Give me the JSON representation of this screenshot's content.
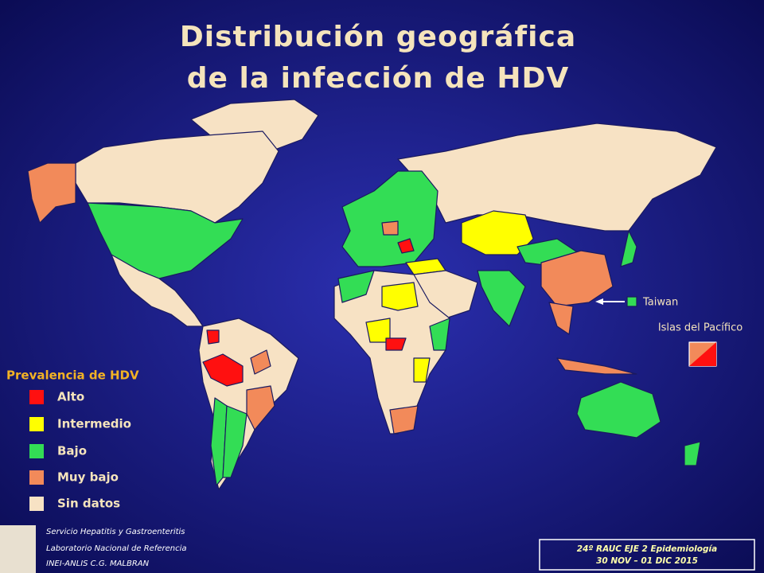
{
  "title": [
    "Distribución geográfica",
    "de la infección de HDV"
  ],
  "legend": {
    "title": "Prevalencia de HDV",
    "items": [
      {
        "label": "Alto",
        "color": "#ff1010"
      },
      {
        "label": "Intermedio",
        "color": "#ffff00"
      },
      {
        "label": "Bajo",
        "color": "#33dd55"
      },
      {
        "label": "Muy bajo",
        "color": "#f28a5a"
      },
      {
        "label": "Sin datos",
        "color": "#f7e2c4"
      }
    ]
  },
  "map_labels": {
    "taiwan": "Taiwan",
    "pacific": "Islas del Pacífico"
  },
  "footer": {
    "left": [
      "Servicio Hepatitis y Gastroenteritis",
      "Laboratorio Nacional de Referencia",
      "INEI-ANLIS C.G. MALBRAN"
    ],
    "right": [
      "24º RAUC  EJE 2  Epidemiología",
      "30 NOV – 01 DIC  2015"
    ]
  }
}
